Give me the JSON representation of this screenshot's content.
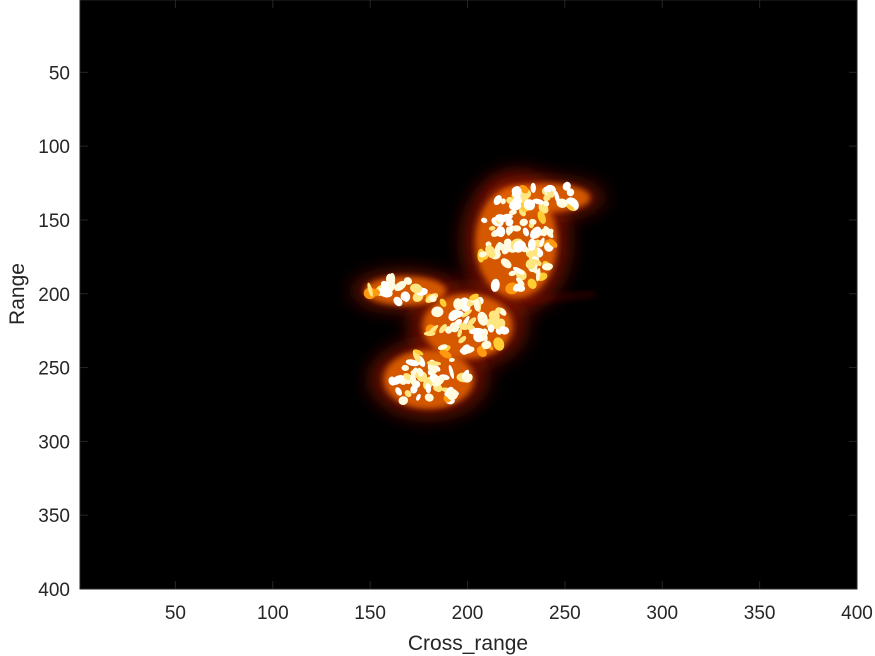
{
  "chart_data": {
    "type": "heatmap",
    "title": "",
    "xlabel": "Cross_range",
    "ylabel": "Range",
    "xlim": [
      1,
      400
    ],
    "ylim": [
      1,
      400
    ],
    "y_reversed": true,
    "xticks": [
      50,
      100,
      150,
      200,
      250,
      300,
      350,
      400
    ],
    "yticks": [
      50,
      100,
      150,
      200,
      250,
      300,
      350,
      400
    ],
    "colormap": "hot",
    "background_color": "#000000",
    "grid": false,
    "regions": [
      {
        "name": "upper-segment",
        "x_center": 225,
        "y_center": 165,
        "x_halfwidth": 20,
        "y_halfwidth": 38,
        "intensity": 1.0
      },
      {
        "name": "upper-cap",
        "x_center": 240,
        "y_center": 135,
        "x_halfwidth": 22,
        "y_halfwidth": 10,
        "intensity": 1.0
      },
      {
        "name": "left-arm",
        "x_center": 168,
        "y_center": 198,
        "x_halfwidth": 20,
        "y_halfwidth": 10,
        "intensity": 0.95
      },
      {
        "name": "middle-segment",
        "x_center": 200,
        "y_center": 222,
        "x_halfwidth": 22,
        "y_halfwidth": 22,
        "intensity": 0.95
      },
      {
        "name": "lower-segment",
        "x_center": 180,
        "y_center": 258,
        "x_halfwidth": 22,
        "y_halfwidth": 20,
        "intensity": 1.0
      }
    ]
  },
  "axes": {
    "xlabel": "Cross_range",
    "ylabel": "Range"
  }
}
